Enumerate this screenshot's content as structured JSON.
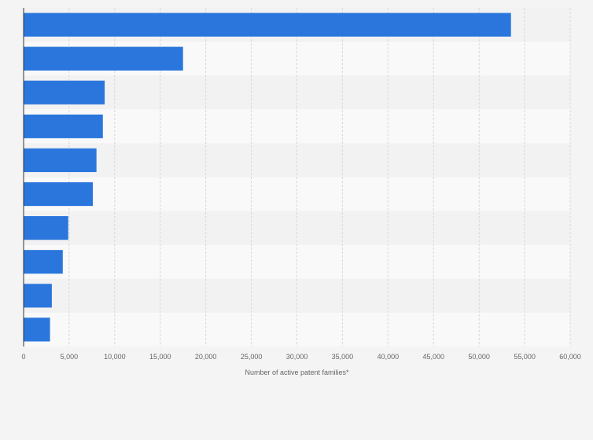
{
  "chart_data": {
    "type": "bar",
    "orientation": "horizontal",
    "title": "",
    "xlabel": "Number of active patent families*",
    "ylabel": "",
    "categories": [
      "",
      "",
      "",
      "",
      "",
      "",
      "",
      "",
      "",
      ""
    ],
    "values": [
      53500,
      17500,
      8900,
      8700,
      8000,
      7600,
      4900,
      4300,
      3100,
      2900
    ],
    "xlim": [
      0,
      60000
    ],
    "x_ticks": [
      "0",
      "5,000",
      "10,000",
      "15,000",
      "20,000",
      "25,000",
      "30,000",
      "35,000",
      "40,000",
      "45,000",
      "50,000",
      "55,000",
      "60,000"
    ],
    "x_tick_values": [
      0,
      5000,
      10000,
      15000,
      20000,
      25000,
      30000,
      35000,
      40000,
      45000,
      50000,
      55000,
      60000
    ],
    "grid": true,
    "legend": "none",
    "colors": {
      "bar": "#2a76dd",
      "band_light": "#f9f9f9",
      "band_dark": "#f2f2f2",
      "gridline": "#d8d8d8",
      "axis": "#333333",
      "text": "#666666"
    }
  }
}
